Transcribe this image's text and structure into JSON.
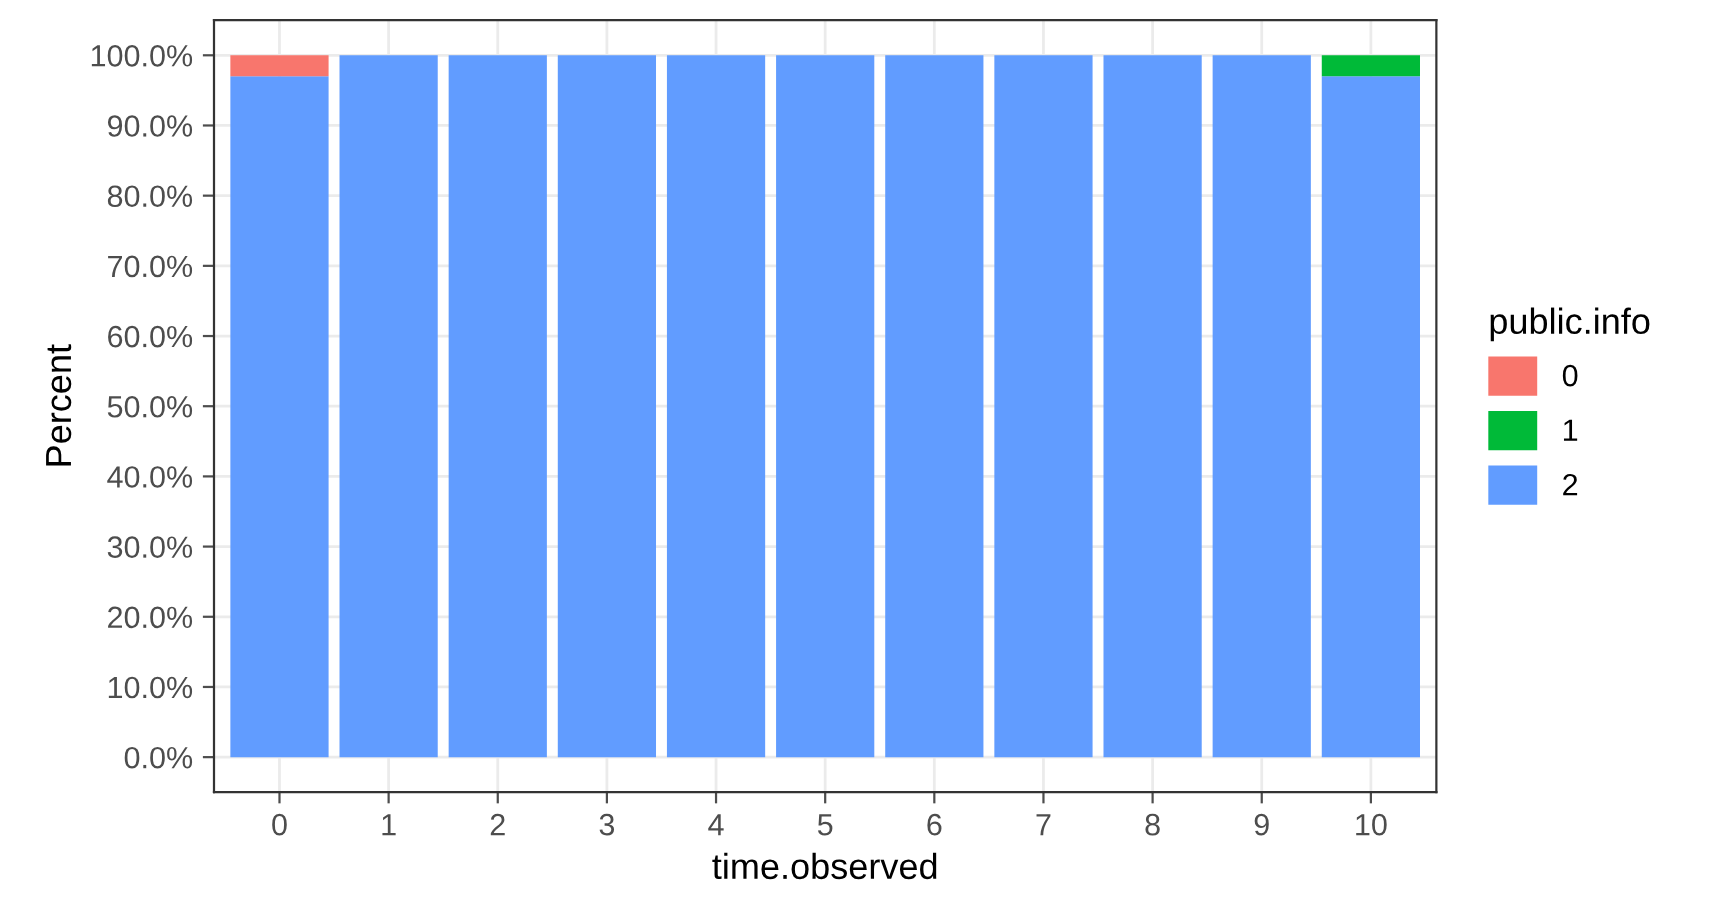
{
  "chart_data": {
    "type": "bar",
    "stacked": true,
    "xlabel": "time.observed",
    "ylabel": "Percent",
    "legend_title": "public.info",
    "legend": "right",
    "grid": true,
    "categories": [
      "0",
      "1",
      "2",
      "3",
      "4",
      "5",
      "6",
      "7",
      "8",
      "9",
      "10"
    ],
    "series": [
      {
        "name": "2",
        "color": "#619cff",
        "values": [
          97,
          100,
          100,
          100,
          100,
          100,
          100,
          100,
          100,
          100,
          97
        ]
      },
      {
        "name": "1",
        "color": "#00ba38",
        "values": [
          0,
          0,
          0,
          0,
          0,
          0,
          0,
          0,
          0,
          0,
          3
        ]
      },
      {
        "name": "0",
        "color": "#f8766d",
        "values": [
          3,
          0,
          0,
          0,
          0,
          0,
          0,
          0,
          0,
          0,
          0
        ]
      }
    ],
    "ylim": [
      -5,
      105
    ],
    "yticks": [
      {
        "value": 0,
        "label": "0.0%"
      },
      {
        "value": 10,
        "label": "10.0%"
      },
      {
        "value": 20,
        "label": "20.0%"
      },
      {
        "value": 30,
        "label": "30.0%"
      },
      {
        "value": 40,
        "label": "40.0%"
      },
      {
        "value": 50,
        "label": "50.0%"
      },
      {
        "value": 60,
        "label": "60.0%"
      },
      {
        "value": 70,
        "label": "70.0%"
      },
      {
        "value": 80,
        "label": "80.0%"
      },
      {
        "value": 90,
        "label": "90.0%"
      },
      {
        "value": 100,
        "label": "100.0%"
      }
    ]
  }
}
